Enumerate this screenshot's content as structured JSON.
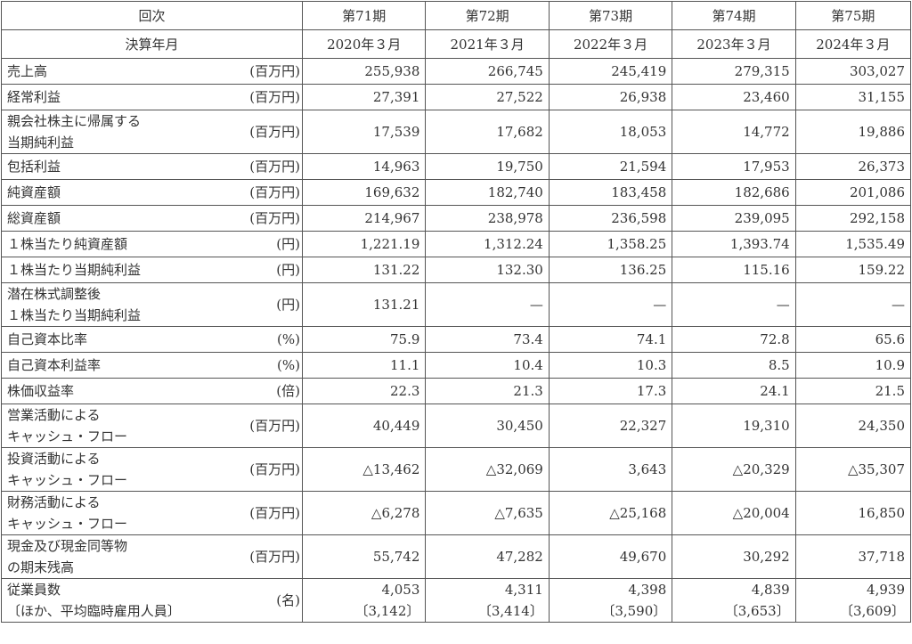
{
  "header": {
    "period_label": "回次",
    "periods": [
      "第71期",
      "第72期",
      "第73期",
      "第74期",
      "第75期"
    ],
    "date_label": "決算年月",
    "dates": [
      "2020年３月",
      "2021年３月",
      "2022年３月",
      "2023年３月",
      "2024年３月"
    ]
  },
  "rows": [
    {
      "label": [
        "売上高"
      ],
      "unit": "(百万円)",
      "values": [
        "255,938",
        "266,745",
        "245,419",
        "279,315",
        "303,027"
      ]
    },
    {
      "label": [
        "経常利益"
      ],
      "unit": "(百万円)",
      "values": [
        "27,391",
        "27,522",
        "26,938",
        "23,460",
        "31,155"
      ]
    },
    {
      "label": [
        "親会社株主に帰属する",
        "当期純利益"
      ],
      "unit": "(百万円)",
      "values": [
        "17,539",
        "17,682",
        "18,053",
        "14,772",
        "19,886"
      ]
    },
    {
      "label": [
        "包括利益"
      ],
      "unit": "(百万円)",
      "values": [
        "14,963",
        "19,750",
        "21,594",
        "17,953",
        "26,373"
      ]
    },
    {
      "label": [
        "純資産額"
      ],
      "unit": "(百万円)",
      "values": [
        "169,632",
        "182,740",
        "183,458",
        "182,686",
        "201,086"
      ]
    },
    {
      "label": [
        "総資産額"
      ],
      "unit": "(百万円)",
      "values": [
        "214,967",
        "238,978",
        "236,598",
        "239,095",
        "292,158"
      ]
    },
    {
      "label": [
        "１株当たり純資産額"
      ],
      "unit": "(円)",
      "values": [
        "1,221.19",
        "1,312.24",
        "1,358.25",
        "1,393.74",
        "1,535.49"
      ]
    },
    {
      "label": [
        "１株当たり当期純利益"
      ],
      "unit": "(円)",
      "values": [
        "131.22",
        "132.30",
        "136.25",
        "115.16",
        "159.22"
      ]
    },
    {
      "label": [
        "潜在株式調整後",
        "１株当たり当期純利益"
      ],
      "unit": "(円)",
      "values": [
        "131.21",
        "—",
        "—",
        "—",
        "—"
      ]
    },
    {
      "label": [
        "自己資本比率"
      ],
      "unit": "(%)",
      "values": [
        "75.9",
        "73.4",
        "74.1",
        "72.8",
        "65.6"
      ]
    },
    {
      "label": [
        "自己資本利益率"
      ],
      "unit": "(%)",
      "values": [
        "11.1",
        "10.4",
        "10.3",
        "8.5",
        "10.9"
      ]
    },
    {
      "label": [
        "株価収益率"
      ],
      "unit": "(倍)",
      "values": [
        "22.3",
        "21.3",
        "17.3",
        "24.1",
        "21.5"
      ]
    },
    {
      "label": [
        "営業活動による",
        "キャッシュ・フロー"
      ],
      "unit": "(百万円)",
      "values": [
        "40,449",
        "30,450",
        "22,327",
        "19,310",
        "24,350"
      ]
    },
    {
      "label": [
        "投資活動による",
        "キャッシュ・フロー"
      ],
      "unit": "(百万円)",
      "values": [
        "△13,462",
        "△32,069",
        "3,643",
        "△20,329",
        "△35,307"
      ]
    },
    {
      "label": [
        "財務活動による",
        "キャッシュ・フロー"
      ],
      "unit": "(百万円)",
      "values": [
        "△6,278",
        "△7,635",
        "△25,168",
        "△20,004",
        "16,850"
      ]
    },
    {
      "label": [
        "現金及び現金同等物",
        "の期末残高"
      ],
      "unit": "(百万円)",
      "values": [
        "55,742",
        "47,282",
        "49,670",
        "30,292",
        "37,718"
      ]
    },
    {
      "label": [
        "従業員数",
        "〔ほか、平均臨時雇用人員〕"
      ],
      "unit": "(名)",
      "values": [
        [
          "4,053",
          "〔3,142〕"
        ],
        [
          "4,311",
          "〔3,414〕"
        ],
        [
          "4,398",
          "〔3,590〕"
        ],
        [
          "4,839",
          "〔3,653〕"
        ],
        [
          "4,939",
          "〔3,609〕"
        ]
      ]
    }
  ]
}
